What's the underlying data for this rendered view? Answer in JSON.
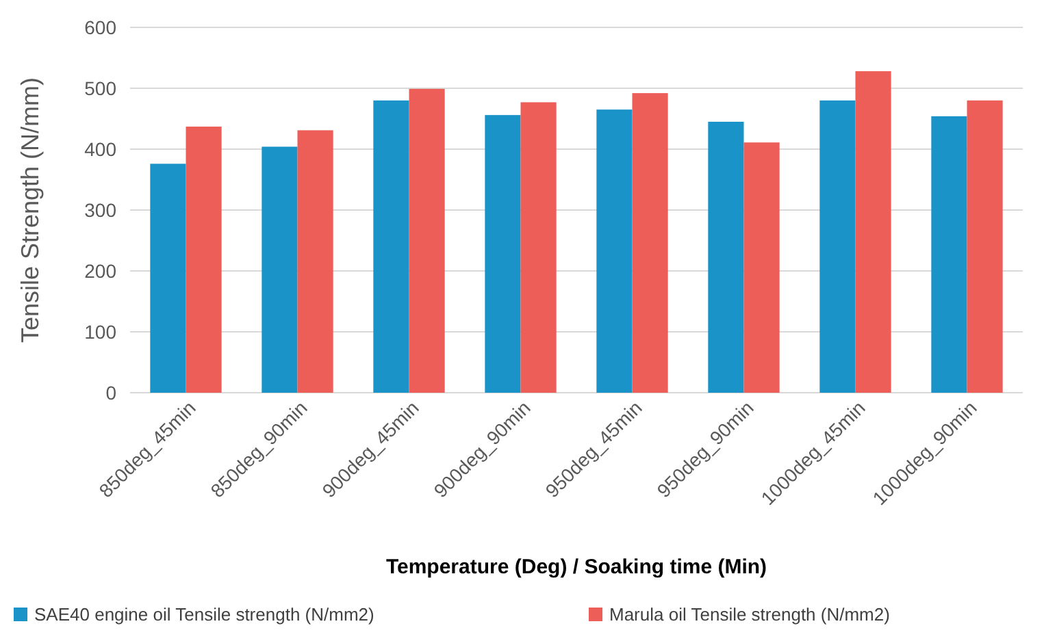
{
  "chart_data": {
    "type": "bar",
    "xlabel": "Temperature (Deg) / Soaking time (Min)",
    "ylabel": "Tensile Strength (N/mm)",
    "categories": [
      "850deg_45min",
      "850deg_90min",
      "900deg_45min",
      "900deg_90min",
      "950deg_45min",
      "950deg_90min",
      "1000deg_45min",
      "1000deg_90min"
    ],
    "series": [
      {
        "name": "SAE40 engine oil Tensile strength (N/mm2)",
        "color": "#1a93c9",
        "values": [
          376,
          404,
          480,
          456,
          465,
          445,
          480,
          454
        ]
      },
      {
        "name": "Marula oil Tensile strength (N/mm2)",
        "color": "#ed5e58",
        "values": [
          437,
          431,
          499,
          477,
          492,
          411,
          528,
          480
        ]
      }
    ],
    "ylim": [
      0,
      600
    ],
    "yticks": [
      0,
      100,
      200,
      300,
      400,
      500,
      600
    ],
    "grid": "y",
    "legend": "bottom"
  }
}
